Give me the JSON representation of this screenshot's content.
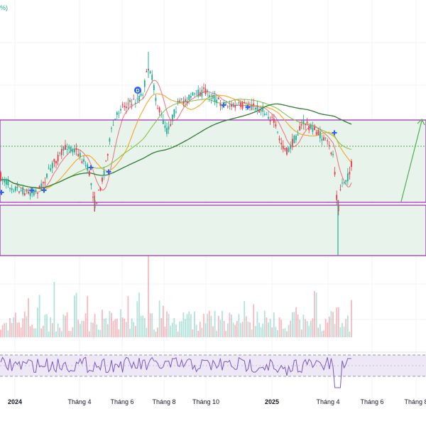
{
  "header": {
    "change_fragment": "%)"
  },
  "colors": {
    "up": "#22ab94",
    "down": "#f23645",
    "range_box_border": "#9c27b0",
    "range_fill": "#e8f3ec",
    "ma_fast": "#f5a623",
    "ma_mid": "#8bc34a",
    "ma_long": "#2e7d32",
    "rsi_line": "#7e57c2",
    "rsi_band": "#ede7f6",
    "marker": "#2962ff",
    "projection": "#4caf50"
  },
  "markers": {
    "dividend_label": "D"
  },
  "chart_data": {
    "type": "candlestick",
    "title": "",
    "x_axis_labels": [
      {
        "label": "2024",
        "bold": true
      },
      {
        "label": "Tháng 4",
        "bold": false
      },
      {
        "label": "Tháng 6",
        "bold": false
      },
      {
        "label": "Tháng 8",
        "bold": false
      },
      {
        "label": "Tháng 10",
        "bold": false
      },
      {
        "label": "2025",
        "bold": true
      },
      {
        "label": "Tháng 4",
        "bold": false
      },
      {
        "label": "Tháng 6",
        "bold": false
      },
      {
        "label": "Tháng 8",
        "bold": false
      }
    ],
    "indicators": [
      "MA fast",
      "MA mid",
      "MA long",
      "Volume",
      "RSI"
    ],
    "price_range_zones": [
      "upper box",
      "lower box"
    ],
    "grid": true
  }
}
